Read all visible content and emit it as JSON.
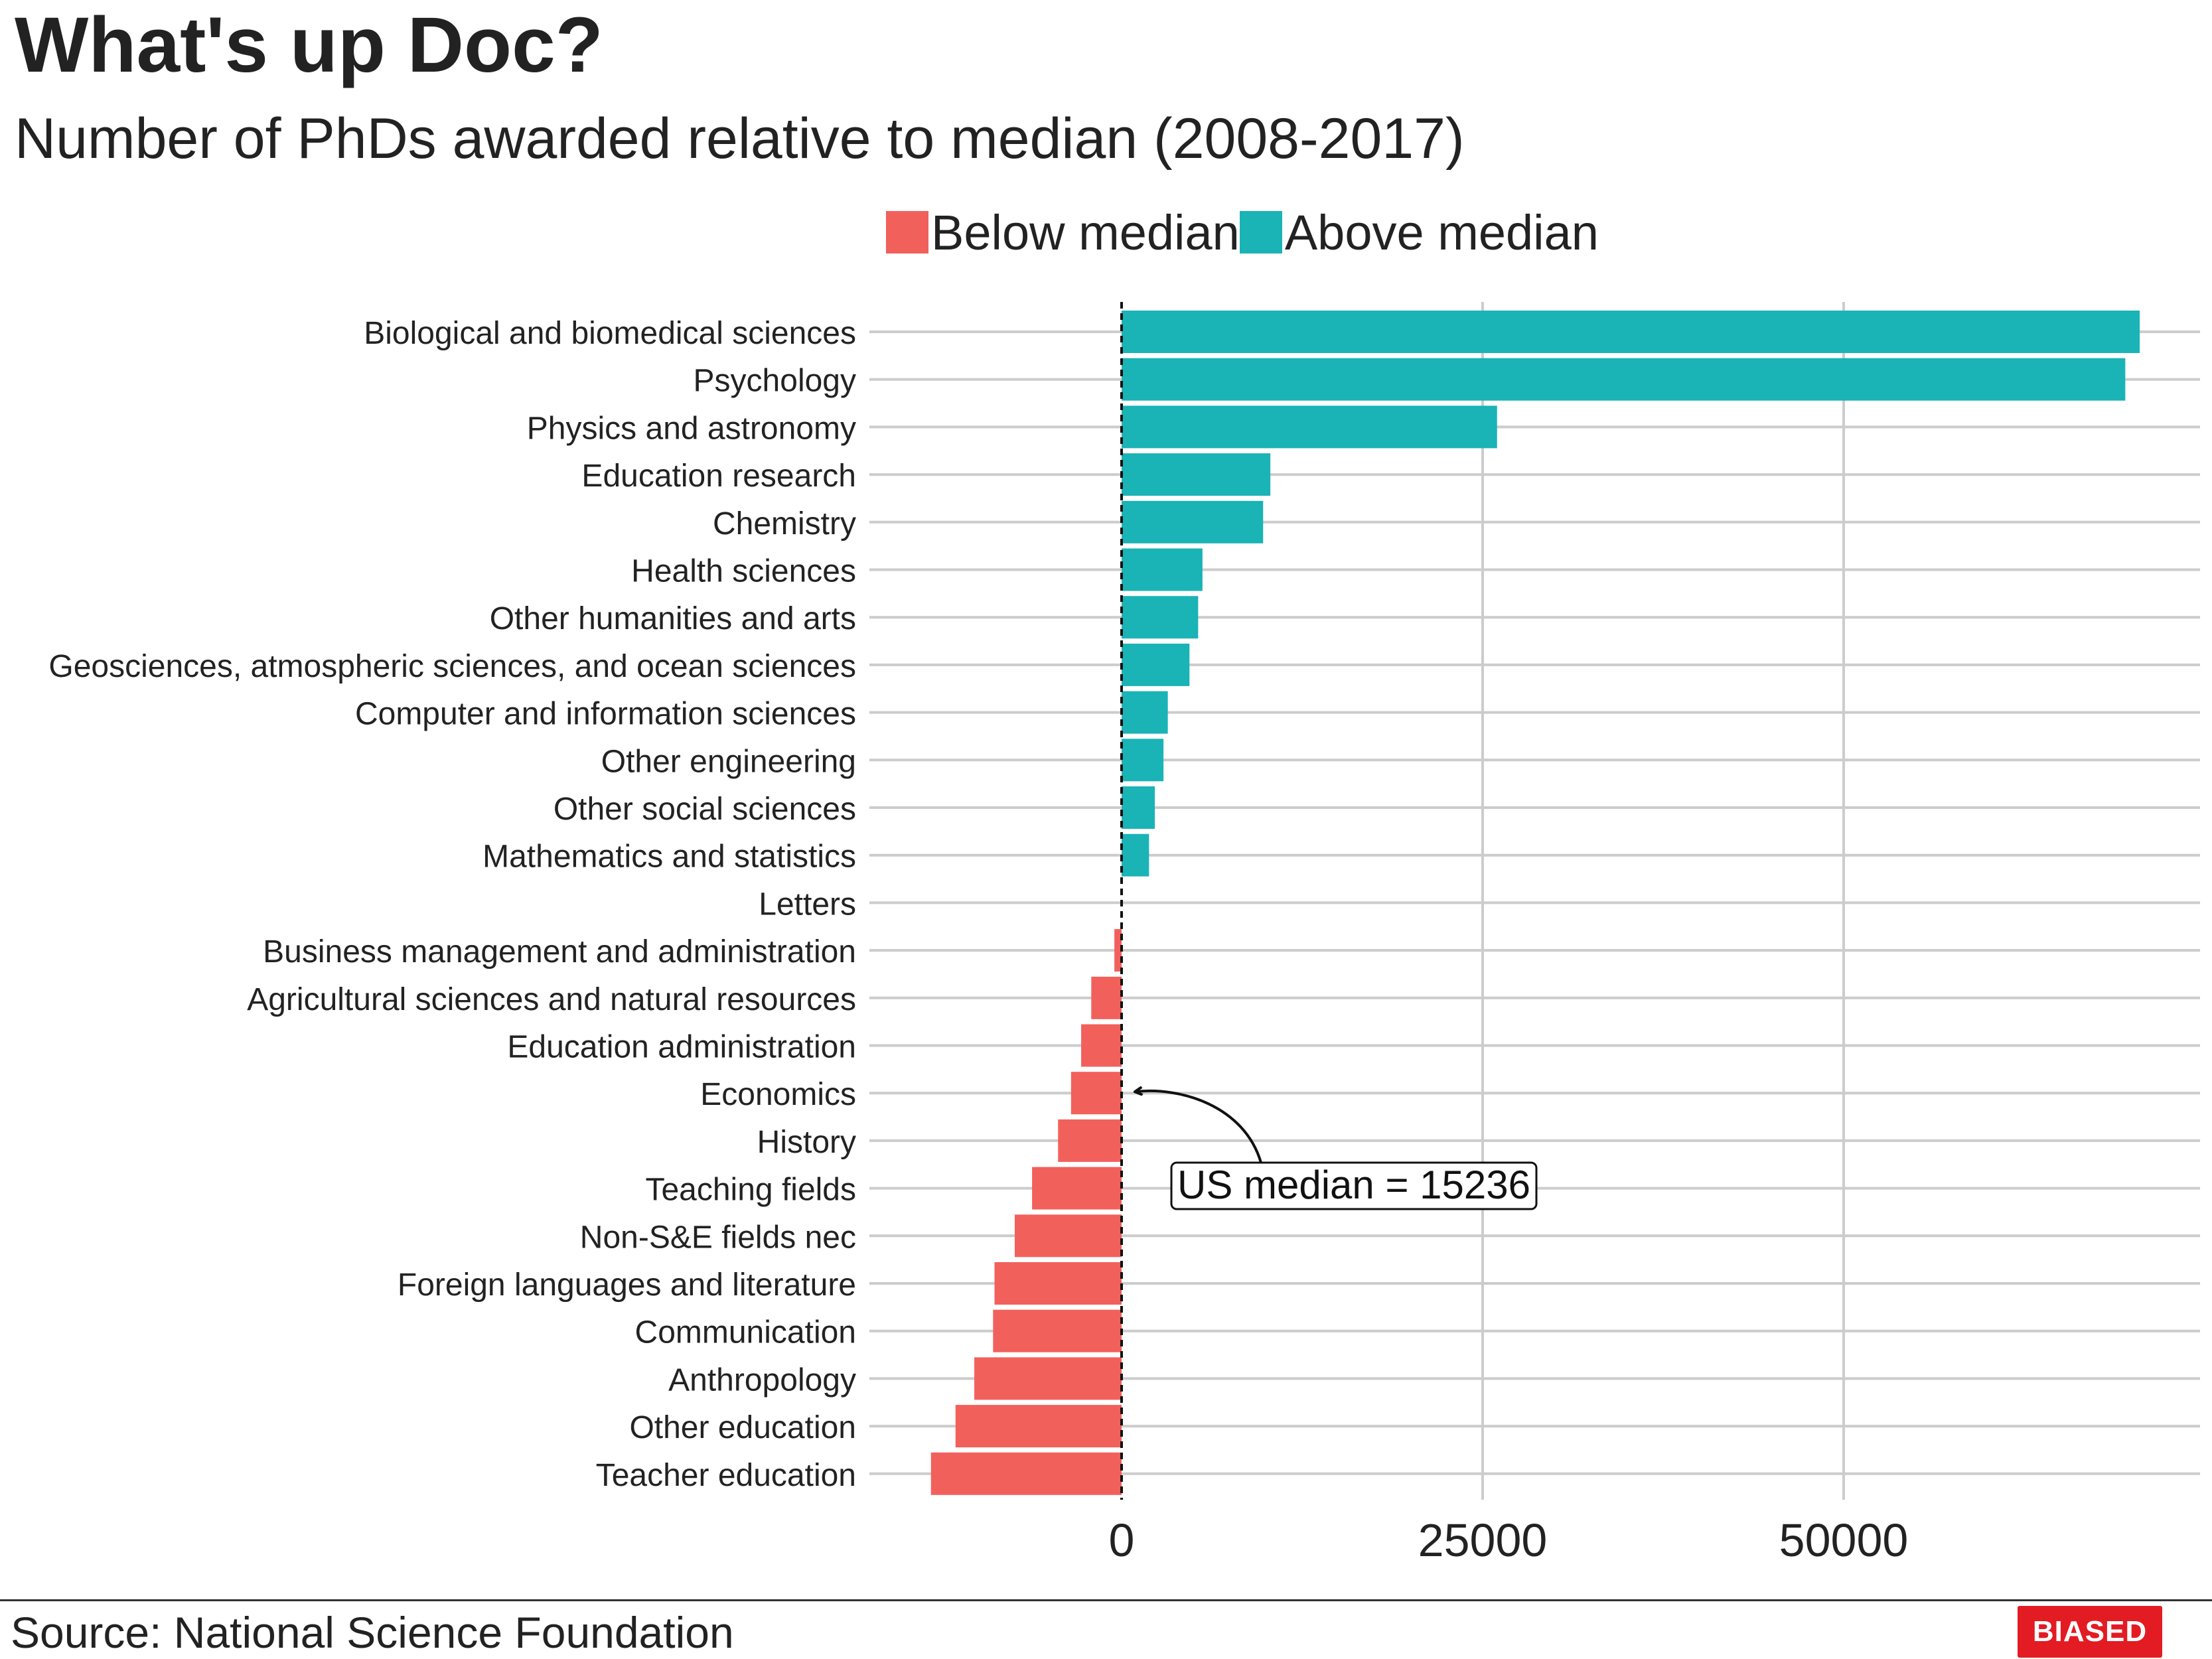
{
  "header": {
    "title": "What's up Doc?",
    "subtitle": "Number of PhDs awarded relative to median (2008-2017)"
  },
  "legend": {
    "items": [
      {
        "label": "Below median",
        "color": "#F2605B"
      },
      {
        "label": "Above median",
        "color": "#1AB3B6"
      }
    ]
  },
  "footer": {
    "source": "Source: National Science Foundation",
    "badge": "BIASED",
    "badge_color": "#E31B23"
  },
  "annotation": {
    "text": "US median = 15236"
  },
  "chart_data": {
    "type": "bar",
    "orientation": "horizontal",
    "title": "What's up Doc?",
    "subtitle": "Number of PhDs awarded relative to median (2008-2017)",
    "xlabel": "",
    "ylabel": "",
    "xlim": [
      -17500,
      74500
    ],
    "xticks": [
      0,
      25000,
      50000
    ],
    "grid": true,
    "legend_position": "top",
    "reference_line": 0,
    "categories": [
      "Biological and biomedical sciences",
      "Psychology",
      "Physics and astronomy",
      "Education research",
      "Chemistry",
      "Health sciences",
      "Other humanities and arts",
      "Geosciences, atmospheric sciences, and ocean sciences",
      "Computer and information sciences",
      "Other engineering",
      "Other social sciences",
      "Mathematics and statistics",
      "Letters",
      "Business management and administration",
      "Agricultural sciences and natural resources",
      "Education administration",
      "Economics",
      "History",
      "Teaching fields",
      "Non-S&E fields nec",
      "Foreign languages and literature",
      "Communication",
      "Anthropology",
      "Other education",
      "Teacher education"
    ],
    "values": [
      70500,
      69500,
      26000,
      10300,
      9800,
      5600,
      5300,
      4700,
      3200,
      2900,
      2300,
      1900,
      0,
      -500,
      -2100,
      -2800,
      -3500,
      -4400,
      -6200,
      -7400,
      -8800,
      -8900,
      -10200,
      -11500,
      -13200
    ],
    "series": [
      {
        "name": "Below median",
        "color": "#F2605B"
      },
      {
        "name": "Above median",
        "color": "#1AB3B6"
      }
    ],
    "median_annotation": "US median = 15236"
  }
}
